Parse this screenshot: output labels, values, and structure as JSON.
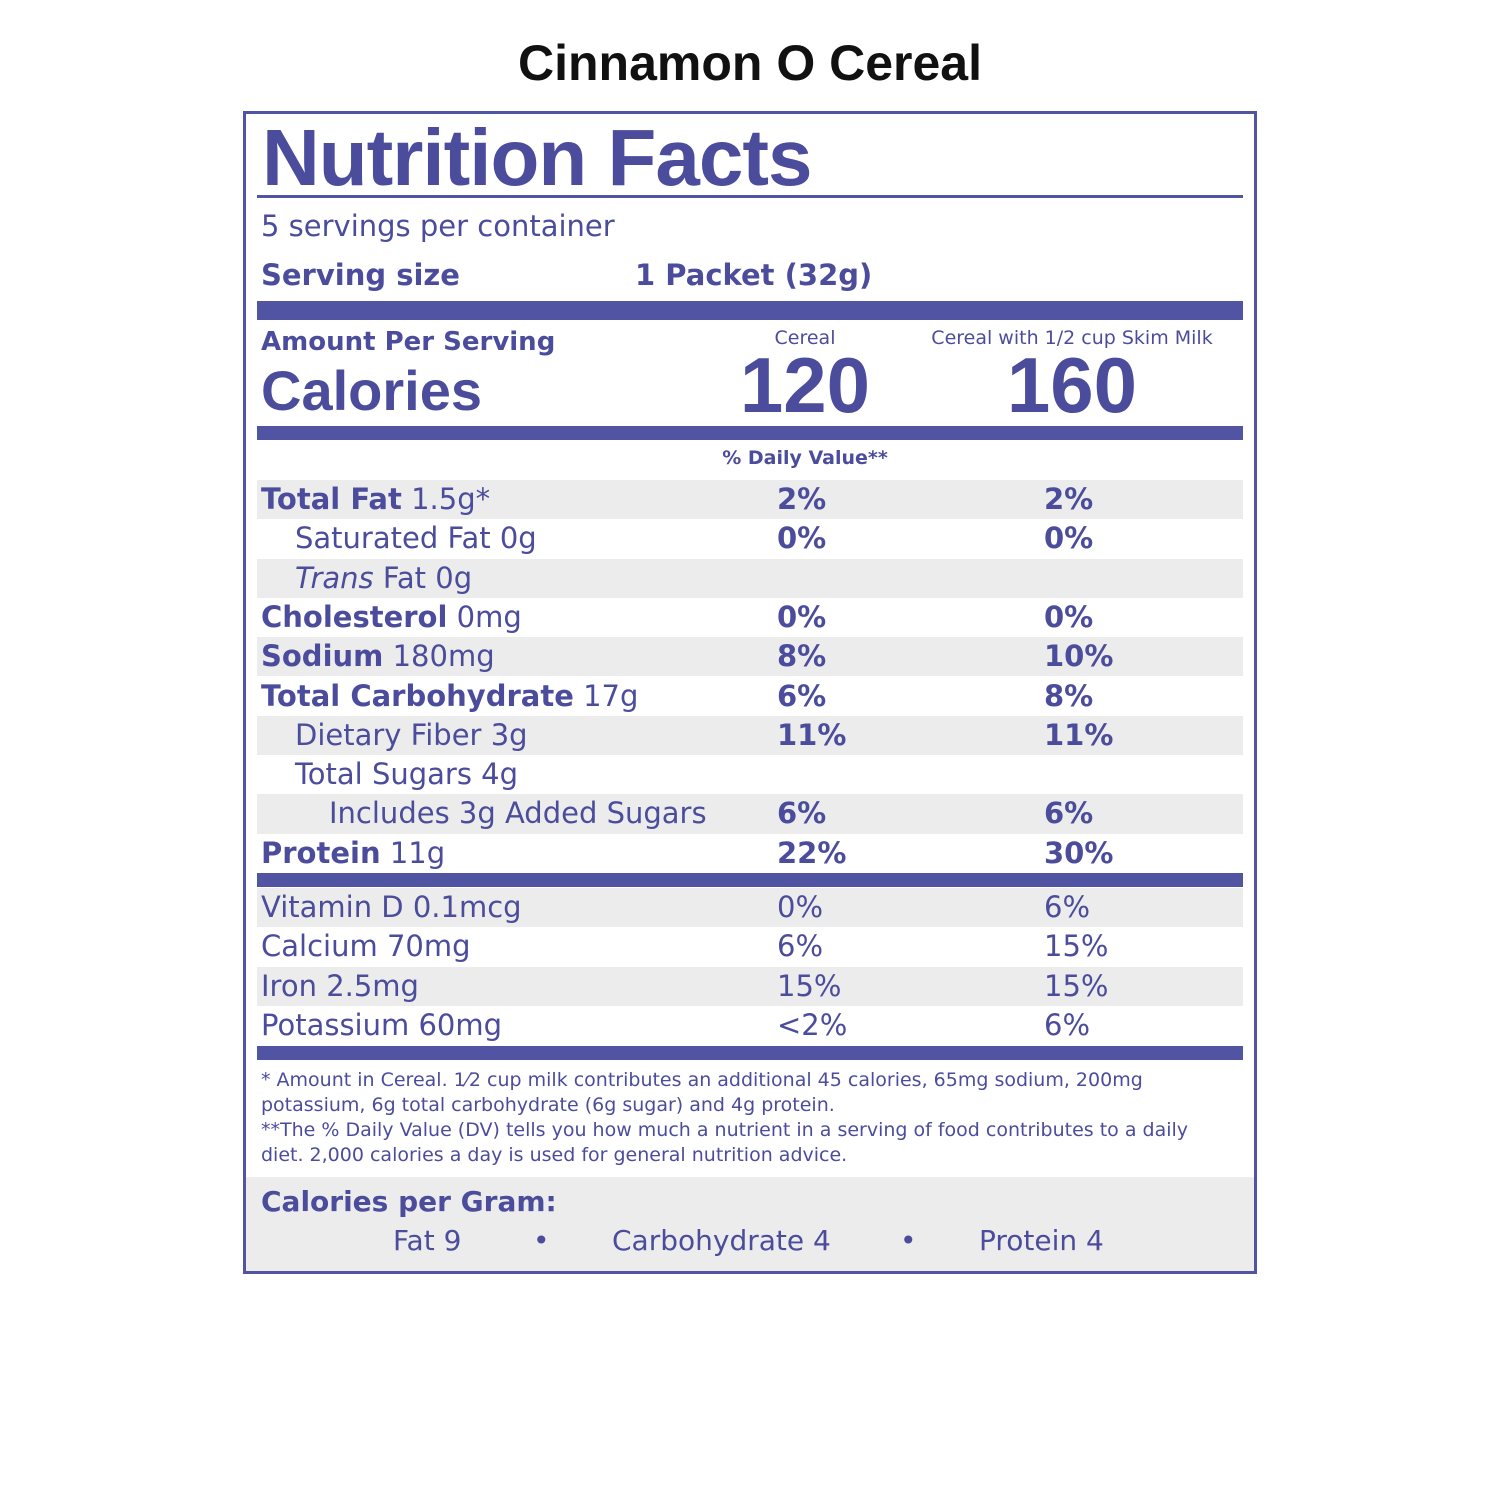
{
  "title": "Cinnamon O Cereal",
  "label": {
    "heading": "Nutrition Facts",
    "servings": "5 servings per container",
    "serving_size_label": "Serving size",
    "serving_size_value": "1 Packet (32g)",
    "amount_per_serving": "Amount Per Serving",
    "calories_label": "Calories",
    "columns": [
      {
        "name": "Cereal",
        "calories": 120
      },
      {
        "name": "Cereal with 1/2 cup Skim Milk",
        "calories": 160
      }
    ],
    "dv_header": "% Daily Value**",
    "nutrients": [
      {
        "name": "Total Fat",
        "amount": "1.5g*",
        "dv": [
          "2%",
          "2%"
        ],
        "bold": true,
        "indent": 0
      },
      {
        "name": "Saturated Fat",
        "amount": "0g",
        "dv": [
          "0%",
          "0%"
        ],
        "bold": false,
        "indent": 1
      },
      {
        "name_italic": "Trans",
        "name": "Fat",
        "amount": "0g",
        "dv": [],
        "bold": false,
        "indent": 1
      },
      {
        "name": "Cholesterol",
        "amount": "0mg",
        "dv": [
          "0%",
          "0%"
        ],
        "bold": true,
        "indent": 0
      },
      {
        "name": "Sodium",
        "amount": "180mg",
        "dv": [
          "8%",
          "10%"
        ],
        "bold": true,
        "indent": 0
      },
      {
        "name": "Total Carbohydrate",
        "amount": "17g",
        "dv": [
          "6%",
          "8%"
        ],
        "bold": true,
        "indent": 0
      },
      {
        "name": "Dietary Fiber",
        "amount": "3g",
        "dv": [
          "11%",
          "11%"
        ],
        "bold": false,
        "indent": 1
      },
      {
        "name": "Total Sugars",
        "amount": "4g",
        "dv": [],
        "bold": false,
        "indent": 1
      },
      {
        "name": "Includes 3g Added Sugars",
        "dv": [
          "6%",
          "6%"
        ],
        "bold": false,
        "indent": 2
      },
      {
        "name": "Protein",
        "amount": "11g",
        "dv": [
          "22%",
          "30%"
        ],
        "bold": true,
        "indent": 0
      }
    ],
    "vitamins": [
      {
        "name": "Vitamin D",
        "amount": "0.1mcg",
        "dv": [
          "0%",
          "6%"
        ]
      },
      {
        "name": "Calcium",
        "amount": "70mg",
        "dv": [
          "6%",
          "15%"
        ]
      },
      {
        "name": "Iron",
        "amount": "2.5mg",
        "dv": [
          "15%",
          "15%"
        ]
      },
      {
        "name": "Potassium",
        "amount": "60mg",
        "dv": [
          "<2%",
          "6%"
        ]
      }
    ],
    "footnotes": [
      "* Amount in Cereal. 1⁄2 cup milk contributes an additional 45 calories, 65mg sodium, 200mg potassium, 6g total carbohydrate (6g sugar) and 4g protein.",
      "**The % Daily Value (DV) tells you how much a nutrient in a serving of food contributes to a daily diet. 2,000 calories a day is used for general nutrition advice."
    ],
    "calories_per_gram": {
      "title": "Calories per Gram:",
      "items": [
        "Fat 9",
        "Carbohydrate 4",
        "Protein 4"
      ]
    }
  }
}
